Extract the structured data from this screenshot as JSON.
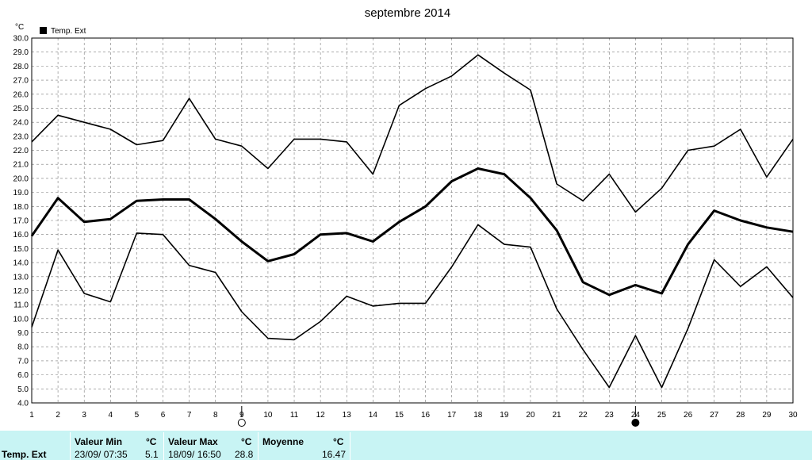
{
  "chart_data": {
    "type": "line",
    "title": "septembre 2014",
    "ylabel": "°C",
    "xlabel": "",
    "ylim": [
      4.0,
      30.0
    ],
    "ytick_step": 1.0,
    "x": [
      1,
      2,
      3,
      4,
      5,
      6,
      7,
      8,
      9,
      10,
      11,
      12,
      13,
      14,
      15,
      16,
      17,
      18,
      19,
      20,
      21,
      22,
      23,
      24,
      25,
      26,
      27,
      28,
      29,
      30
    ],
    "legend": {
      "label": "Temp. Ext",
      "position": "top-left"
    },
    "grid": true,
    "series": [
      {
        "role": "max",
        "stroke": "thin",
        "values": [
          22.6,
          24.5,
          24.0,
          23.5,
          22.4,
          22.7,
          25.7,
          22.8,
          22.3,
          20.7,
          22.8,
          22.8,
          22.6,
          20.3,
          25.2,
          26.4,
          27.3,
          28.8,
          27.5,
          26.3,
          19.6,
          18.4,
          20.3,
          17.6,
          19.3,
          22.0,
          22.3,
          23.5,
          20.1,
          22.8
        ]
      },
      {
        "role": "mean",
        "stroke": "thick",
        "values": [
          15.9,
          18.6,
          16.9,
          17.1,
          18.4,
          18.5,
          18.5,
          17.1,
          15.5,
          14.1,
          14.6,
          16.0,
          16.1,
          15.5,
          16.9,
          18.0,
          19.8,
          20.7,
          20.3,
          18.6,
          16.3,
          12.6,
          11.7,
          12.4,
          11.8,
          15.3,
          17.7,
          17.0,
          16.5,
          16.2
        ]
      },
      {
        "role": "min",
        "stroke": "thin",
        "values": [
          9.4,
          14.9,
          11.8,
          11.2,
          16.1,
          16.0,
          13.8,
          13.3,
          10.5,
          8.6,
          8.5,
          9.8,
          11.6,
          10.9,
          11.1,
          11.1,
          13.7,
          16.7,
          15.3,
          15.1,
          10.7,
          7.8,
          5.1,
          8.8,
          5.1,
          9.3,
          14.2,
          12.3,
          13.7,
          11.5
        ]
      }
    ],
    "moon_markers": [
      {
        "x": 9,
        "symbol": "new-moon-outline"
      },
      {
        "x": 24,
        "symbol": "full-moon-filled"
      }
    ]
  },
  "stats": {
    "row_label": "Temp. Ext",
    "min": {
      "header": "Valeur Min",
      "unit": "°C",
      "datetime": "23/09/  07:35",
      "value": "5.1"
    },
    "max": {
      "header": "Valeur Max",
      "unit": "°C",
      "datetime": "18/09/  16:50",
      "value": "28.8"
    },
    "mean": {
      "header": "Moyenne",
      "unit": "°C",
      "value": "16.47"
    }
  }
}
